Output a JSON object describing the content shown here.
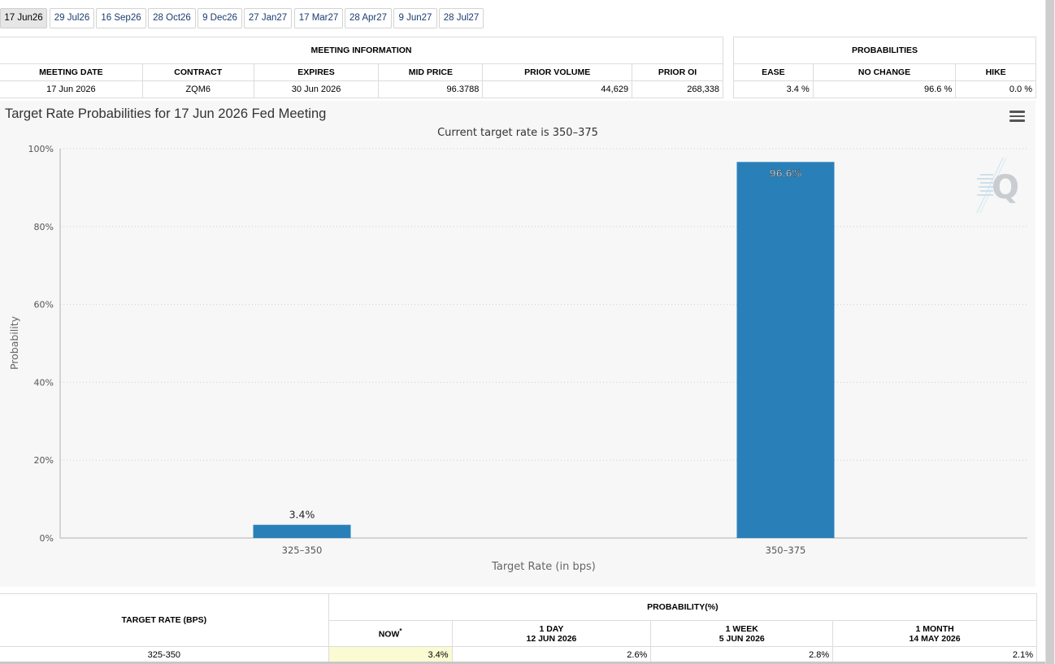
{
  "tabs": [
    "17 Jun26",
    "29 Jul26",
    "16 Sep26",
    "28 Oct26",
    "9 Dec26",
    "27 Jan27",
    "17 Mar27",
    "28 Apr27",
    "9 Jun27",
    "28 Jul27"
  ],
  "meeting_info": {
    "title": "MEETING INFORMATION",
    "headers": [
      "MEETING DATE",
      "CONTRACT",
      "EXPIRES",
      "MID PRICE",
      "PRIOR VOLUME",
      "PRIOR OI"
    ],
    "row": [
      "17 Jun 2026",
      "ZQM6",
      "30 Jun 2026",
      "96.3788",
      "44,629",
      "268,338"
    ]
  },
  "probabilities": {
    "title": "PROBABILITIES",
    "headers": [
      "EASE",
      "NO CHANGE",
      "HIKE"
    ],
    "row": [
      "3.4 %",
      "96.6 %",
      "0.0 %"
    ]
  },
  "chart_data": {
    "type": "bar",
    "title": "Target Rate Probabilities for 17 Jun 2026 Fed Meeting",
    "subtitle": "Current target rate is 350–375",
    "xlabel": "Target Rate (in bps)",
    "ylabel": "Probability",
    "categories": [
      "325–350",
      "350–375"
    ],
    "values": [
      3.4,
      96.6
    ],
    "data_labels": [
      "3.4%",
      "96.6%"
    ],
    "ylim": [
      0,
      100
    ],
    "yticks": [
      "0%",
      "20%",
      "40%",
      "60%",
      "80%",
      "100%"
    ],
    "bar_color": "#2980b9",
    "grid": true,
    "legend": "none"
  },
  "bottom_table": {
    "rate_header": "TARGET RATE (BPS)",
    "prob_header": "PROBABILITY(%)",
    "now_label": "NOW",
    "now_mark": "*",
    "cols": [
      {
        "label": "1 DAY",
        "date": "12 JUN 2026"
      },
      {
        "label": "1 WEEK",
        "date": "5 JUN 2026"
      },
      {
        "label": "1 MONTH",
        "date": "14 MAY 2026"
      }
    ],
    "row": {
      "rate": "325-350",
      "now": "3.4%",
      "day": "2.6%",
      "week": "2.8%",
      "month": "2.1%"
    }
  }
}
